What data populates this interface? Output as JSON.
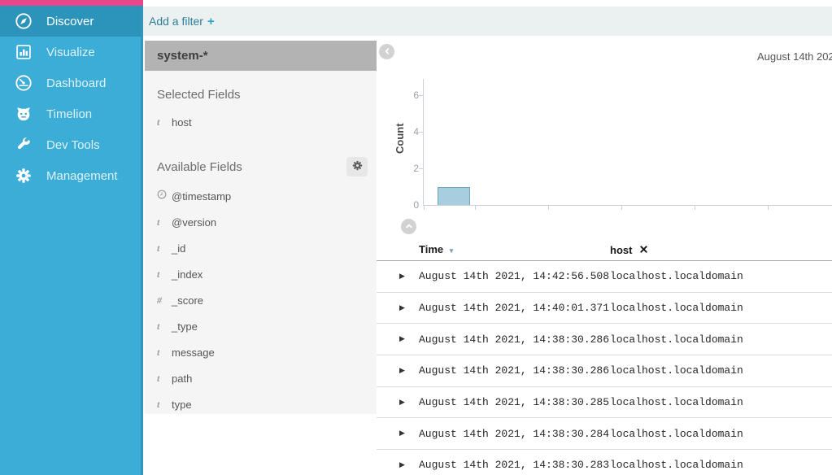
{
  "nav": {
    "items": [
      {
        "label": "Discover",
        "icon": "compass-icon",
        "active": true
      },
      {
        "label": "Visualize",
        "icon": "bar-chart-icon",
        "active": false
      },
      {
        "label": "Dashboard",
        "icon": "gauge-icon",
        "active": false
      },
      {
        "label": "Timelion",
        "icon": "timelion-icon",
        "active": false
      },
      {
        "label": "Dev Tools",
        "icon": "wrench-icon",
        "active": false
      },
      {
        "label": "Management",
        "icon": "gear-icon",
        "active": false
      }
    ]
  },
  "filter_bar": {
    "add_filter_label": "Add a filter"
  },
  "sidebar": {
    "index_pattern": "system-*",
    "selected_heading": "Selected Fields",
    "selected_fields": [
      {
        "type": "t",
        "name": "host"
      }
    ],
    "available_heading": "Available Fields",
    "available_fields": [
      {
        "type": "date",
        "name": "@timestamp"
      },
      {
        "type": "t",
        "name": "@version"
      },
      {
        "type": "t",
        "name": "_id"
      },
      {
        "type": "t",
        "name": "_index"
      },
      {
        "type": "#",
        "name": "_score"
      },
      {
        "type": "t",
        "name": "_type"
      },
      {
        "type": "t",
        "name": "message"
      },
      {
        "type": "t",
        "name": "path"
      },
      {
        "type": "t",
        "name": "type"
      }
    ]
  },
  "chart_data": {
    "type": "bar",
    "title": "August 14th 202",
    "ylabel": "Count",
    "ylim": [
      0,
      7
    ],
    "yticks_top_to_bottom": [
      6,
      4,
      2,
      0
    ],
    "bars": [
      {
        "value": 1
      }
    ],
    "series_color": "#A7CEDF",
    "series_border_color": "#6FA3B9",
    "grid": false
  },
  "table": {
    "time_header": "Time",
    "host_header": "host",
    "rows": [
      {
        "time": "August 14th 2021, 14:42:56.508",
        "host": "localhost.localdomain"
      },
      {
        "time": "August 14th 2021, 14:40:01.371",
        "host": "localhost.localdomain"
      },
      {
        "time": "August 14th 2021, 14:38:30.286",
        "host": "localhost.localdomain"
      },
      {
        "time": "August 14th 2021, 14:38:30.286",
        "host": "localhost.localdomain"
      },
      {
        "time": "August 14th 2021, 14:38:30.285",
        "host": "localhost.localdomain"
      },
      {
        "time": "August 14th 2021, 14:38:30.284",
        "host": "localhost.localdomain"
      },
      {
        "time": "August 14th 2021, 14:38:30.283",
        "host": "localhost.localdomain"
      }
    ]
  },
  "glyphs": {
    "plus": "+",
    "expand_caret": "▶",
    "sort_caret": "▾"
  },
  "colors": {
    "topbar_pink": "#E8488B",
    "nav_teal": "#3BADD6",
    "nav_active_teal": "#2C93BB",
    "link_teal": "#2E7E95",
    "filter_bar_bg": "#EBF0F0",
    "fields_panel_bg": "#F5F5F5",
    "index_header_bg": "#B3B3B3"
  }
}
